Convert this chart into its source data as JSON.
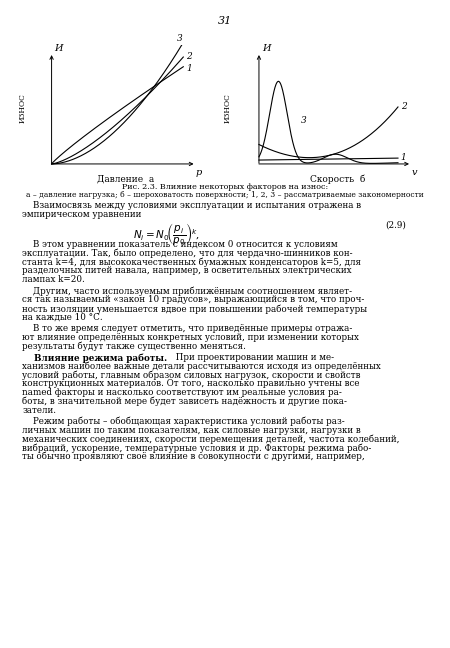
{
  "page_number": "31",
  "left_y_label_top": "И",
  "right_y_label_top": "И",
  "left_wear_label": "ИЗНОС",
  "right_wear_label": "ИЗНОС",
  "left_x_arrow": "p",
  "right_x_arrow": "v",
  "left_xlabel": "Давление  а",
  "right_xlabel": "Скорость  б",
  "caption_line1": "Рис. 2.3. Влияние некоторых факторов на износ:",
  "caption_line2": "а – давление нагрузка; б – шероховатость поверхности; 1, 2, 3 – рассматриваемые закономерности",
  "text_line1": "    Взаимосвязь между условиями эксплуатации и испытания отражена в",
  "text_line2": "эмпирическом уравнении",
  "formula_number": "(2.9)",
  "para1_lines": [
    "    В этом уравнении показатель с индексом 0 относится к условиям",
    "эксплуатации. Так, было определено, что для чердачно-шинников кон-",
    "станта k=4, для высококачественных бумажных конденсаторов k=5, для",
    "разделочных питей навала, например, в осветительных электрических",
    "лампах k=20."
  ],
  "para2_lines": [
    "    Другим, часто используемым приближённым соотношением являет-",
    "ся так называемый «закон 10 градусов», выражающийся в том, что проч-",
    "ность изоляции уменьшается вдвое при повышении рабочей температуры",
    "на каждые 10 °С."
  ],
  "para3_lines": [
    "    В то же время следует отметить, что приведённые примеры отража-",
    "ют влияние определённых конкретных условий, при изменении которых",
    "результаты будут также существенно меняться."
  ],
  "para4_bold": "    Влияние режима работы.",
  "para4_rest": " При проектировании машин и ме-",
  "para4_lines": [
    "    Влияние режима работы. При проектировании машин и ме-",
    "ханизмов наиболее важные детали рассчитываются исходя из определённых",
    "условий работы, главным образом силовых нагрузок, скорости и свойств",
    "конструкционных материалов. От того, насколько правильно учтены все",
    "named факторы и насколько соответствуют им реальные условия ра-",
    "боты, в значительной мере будет зависеть надёжность и другие пока-",
    "затели."
  ],
  "para5_lines": [
    "    Режим работы – обобщающая характеристика условий работы раз-",
    "личных машин по таким показателям, как силовые нагрузки, нагрузки в",
    "механических соединениях, скорости перемещения деталей, частота колебаний,",
    "вибраций, ускорение, температурные условия и др. Факторы режима рабо-",
    "ты обычно проявляют своё влияние в совокупности с другими, например,"
  ],
  "bg": "#ffffff",
  "fg": "#000000"
}
